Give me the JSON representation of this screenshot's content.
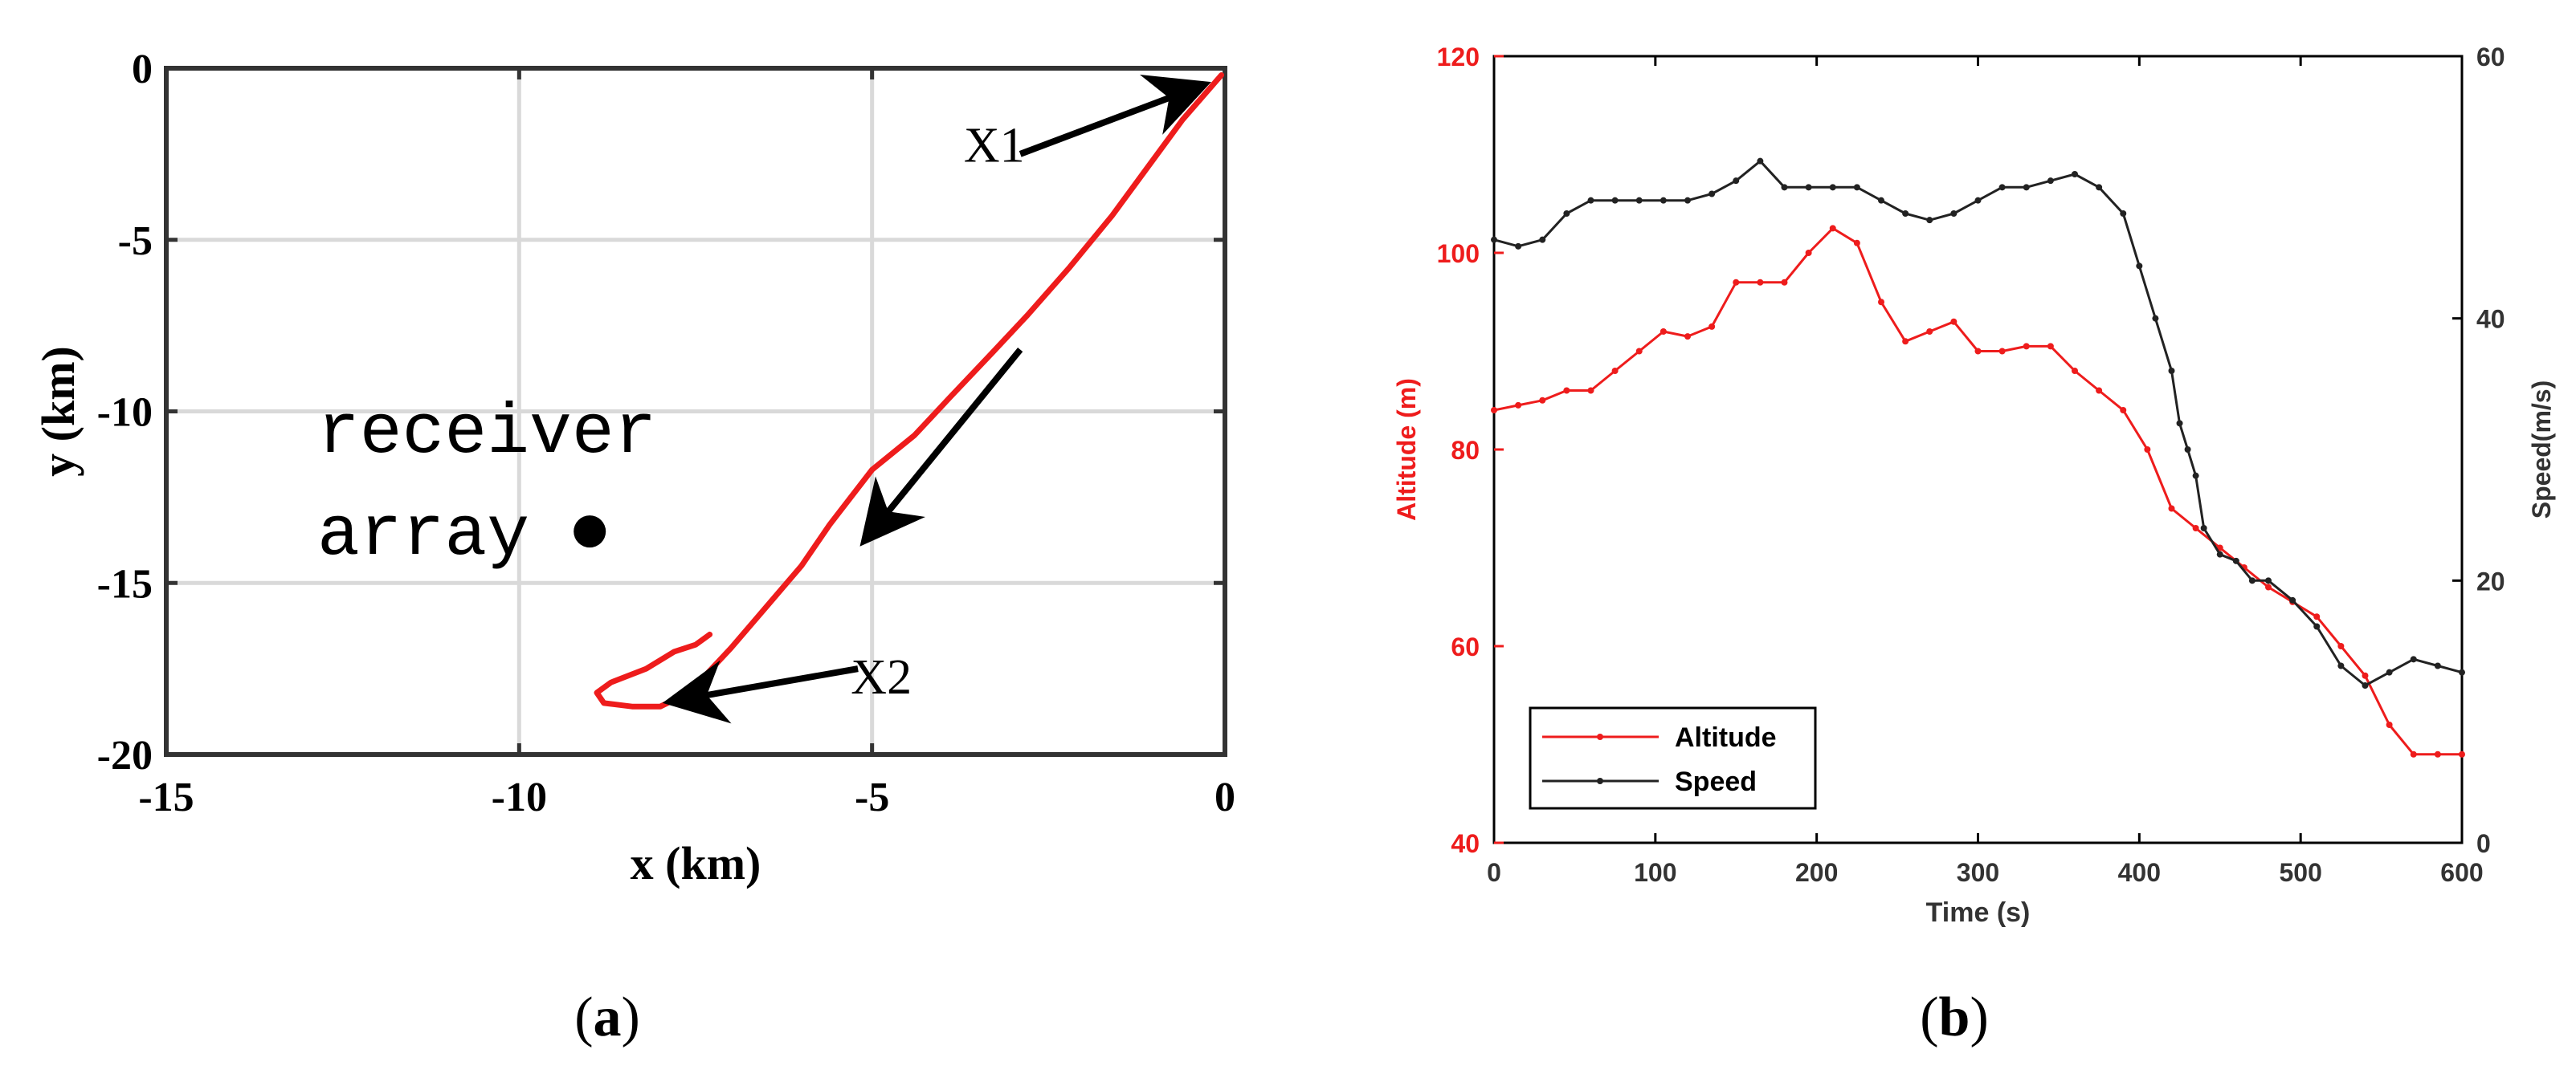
{
  "panels": {
    "a": {
      "label_open": "(",
      "label_letter": "a",
      "label_close": ")"
    },
    "b": {
      "label_open": "(",
      "label_letter": "b",
      "label_close": ")"
    }
  },
  "chart_data": [
    {
      "id": "a",
      "type": "line",
      "xlabel": "x (km)",
      "ylabel": "y (km)",
      "xlim": [
        -15,
        0
      ],
      "ylim": [
        -20,
        0
      ],
      "xticks": [
        "-15",
        "-10",
        "-5",
        "0"
      ],
      "yticks": [
        "0",
        "-5",
        "-10",
        "-15",
        "-20"
      ],
      "grid": true,
      "trajectory": {
        "color": "#ee1c1c",
        "x": [
          -0.05,
          -0.6,
          -1.1,
          -1.6,
          -2.2,
          -2.8,
          -3.3,
          -3.9,
          -4.4,
          -5.0,
          -5.6,
          -6.0,
          -6.5,
          -7.0,
          -7.5,
          -7.8,
          -8.0,
          -8.4,
          -8.8,
          -8.9,
          -8.7,
          -8.2,
          -7.8,
          -7.5,
          -7.3
        ],
        "y": [
          -0.2,
          -1.5,
          -2.9,
          -4.3,
          -5.8,
          -7.2,
          -8.3,
          -9.6,
          -10.7,
          -11.7,
          -13.3,
          -14.5,
          -15.7,
          -16.9,
          -18.0,
          -18.4,
          -18.6,
          -18.6,
          -18.5,
          -18.2,
          -17.9,
          -17.5,
          -17.0,
          -16.8,
          -16.5
        ]
      },
      "receiver": {
        "x": -9.0,
        "y": -13.5,
        "label_line1": "receiver",
        "label_line2": "array"
      },
      "annotations": [
        {
          "text": "X1",
          "text_x": -3.7,
          "text_y": -2.3,
          "arrow_from": [
            -2.9,
            -2.5
          ],
          "arrow_to": [
            -0.45,
            -0.6
          ]
        },
        {
          "text": "X2",
          "text_x": -5.3,
          "text_y": -17.8,
          "arrow_from": [
            -5.2,
            -17.5
          ],
          "arrow_to": [
            -7.7,
            -18.4
          ]
        }
      ],
      "direction_arrow": {
        "from": [
          -2.9,
          -8.2
        ],
        "to": [
          -5.0,
          -13.5
        ]
      }
    },
    {
      "id": "b",
      "type": "line",
      "xlabel": "Time (s)",
      "ylabel": "Altitude (m)",
      "y2label": "Speed(m/s)",
      "xlim": [
        0,
        600
      ],
      "ylim": [
        40,
        120
      ],
      "y2lim": [
        0,
        60
      ],
      "xticks": [
        "0",
        "100",
        "200",
        "300",
        "400",
        "500",
        "600"
      ],
      "yticks": [
        "40",
        "60",
        "80",
        "100",
        "120"
      ],
      "y2ticks": [
        "0",
        "20",
        "40",
        "60"
      ],
      "grid": false,
      "legend_position": "bottom-left",
      "series": [
        {
          "name": "Altitude",
          "axis": "left",
          "color": "#ee1c1c",
          "x": [
            0,
            15,
            30,
            45,
            60,
            75,
            90,
            105,
            120,
            135,
            150,
            165,
            180,
            195,
            210,
            225,
            240,
            255,
            270,
            285,
            300,
            315,
            330,
            345,
            360,
            375,
            390,
            405,
            420,
            435,
            450,
            465,
            480,
            495,
            510,
            525,
            540,
            555,
            570,
            585,
            600
          ],
          "values": [
            84,
            84.5,
            85,
            86,
            86,
            88,
            90,
            92,
            91.5,
            92.5,
            97,
            97,
            97,
            100,
            102.5,
            101,
            95,
            91,
            92,
            93,
            90,
            90,
            90.5,
            90.5,
            88,
            86,
            84,
            80,
            74,
            72,
            70,
            68,
            66,
            64.5,
            63,
            60,
            57,
            52,
            49,
            49,
            49
          ]
        },
        {
          "name": "Speed",
          "axis": "right",
          "color": "#222222",
          "x": [
            0,
            15,
            30,
            45,
            60,
            75,
            90,
            105,
            120,
            135,
            150,
            165,
            180,
            195,
            210,
            225,
            240,
            255,
            270,
            285,
            300,
            315,
            330,
            345,
            360,
            375,
            390,
            400,
            410,
            420,
            425,
            430,
            435,
            440,
            450,
            460,
            470,
            480,
            495,
            510,
            525,
            540,
            555,
            570,
            585,
            600
          ],
          "values": [
            46,
            45.5,
            46,
            48,
            49,
            49,
            49,
            49,
            49,
            49.5,
            50.5,
            52,
            50,
            50,
            50,
            50,
            49,
            48,
            47.5,
            48,
            49,
            50,
            50,
            50.5,
            51,
            50,
            48,
            44,
            40,
            36,
            32,
            30,
            28,
            24,
            22,
            21.5,
            20,
            20,
            18.5,
            16.5,
            13.5,
            12,
            13,
            14,
            13.5,
            13
          ]
        }
      ]
    }
  ]
}
